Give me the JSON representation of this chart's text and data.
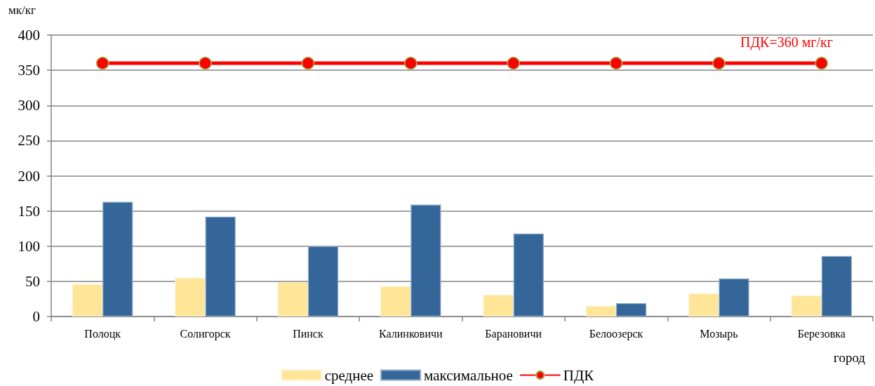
{
  "chart_data": {
    "type": "bar",
    "ylabel": "мк/кг",
    "xlabel": "город",
    "categories": [
      "Полоцк",
      "Солигорск",
      "Пинск",
      "Калинковичи",
      "Барановичи",
      "Белоозерск",
      "Мозырь",
      "Березовка"
    ],
    "series": [
      {
        "name": "среднее",
        "color": "#ffe597",
        "values": [
          46,
          55,
          49,
          43,
          31,
          15,
          33,
          30
        ]
      },
      {
        "name": "максимальное",
        "color": "#346699",
        "values": [
          163,
          142,
          100,
          159,
          118,
          19,
          54,
          86
        ]
      },
      {
        "name": "ПДК",
        "type": "line",
        "color": "#ff0000",
        "values": [
          360,
          360,
          360,
          360,
          360,
          360,
          360,
          360
        ]
      }
    ],
    "annotations": [
      "ПДК=360 мг/кг"
    ],
    "ylim": [
      0,
      400
    ],
    "yticks": [
      0,
      50,
      100,
      150,
      200,
      250,
      300,
      350,
      400
    ],
    "grid": "y",
    "legend": "bottom",
    "marker": "circle",
    "line_style": "solid"
  }
}
